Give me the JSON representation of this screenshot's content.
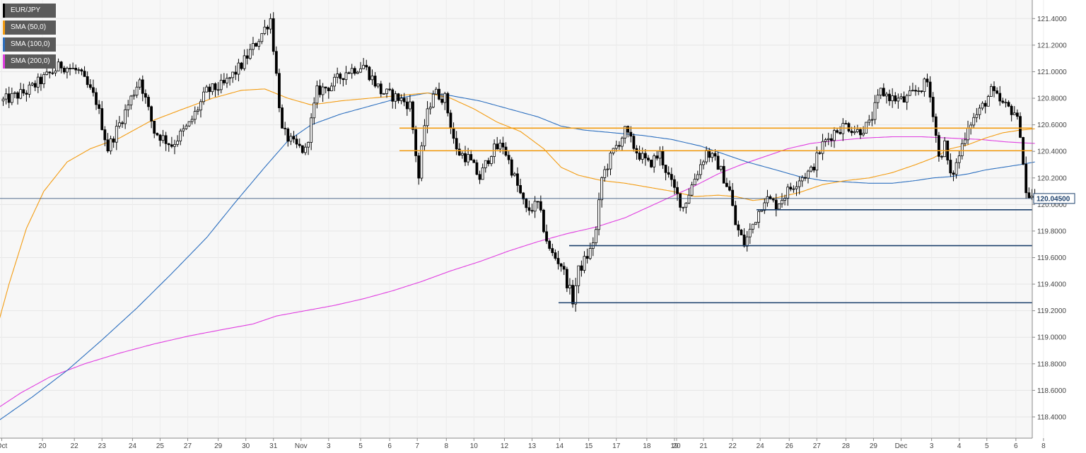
{
  "chart_data": {
    "type": "candlestick",
    "symbol": "EUR/JPY",
    "legend": [
      {
        "label": "EUR/JPY",
        "color": "#000000"
      },
      {
        "label": "SMA (50,0)",
        "color": "#f39c12"
      },
      {
        "label": "SMA (100,0)",
        "color": "#2c6fbf"
      },
      {
        "label": "SMA (200,0)",
        "color": "#e03ee0"
      }
    ],
    "y_ticks": [
      "121.4000",
      "121.2000",
      "121.0000",
      "120.8000",
      "120.6000",
      "120.4000",
      "120.2000",
      "120.0000",
      "119.8000",
      "119.6000",
      "119.4000",
      "119.2000",
      "119.0000",
      "118.8000",
      "118.6000",
      "118.4000"
    ],
    "ylim": [
      118.24,
      121.54
    ],
    "x_ticks": [
      {
        "label": "Oct",
        "i": -0.5
      },
      {
        "label": "20",
        "i": 13.5
      },
      {
        "label": "22",
        "i": 24.5
      },
      {
        "label": "23",
        "i": 34
      },
      {
        "label": "24",
        "i": 44.5
      },
      {
        "label": "25",
        "i": 54
      },
      {
        "label": "27",
        "i": 63.5
      },
      {
        "label": "29",
        "i": 74
      },
      {
        "label": "30",
        "i": 83.5
      },
      {
        "label": "31",
        "i": 93
      },
      {
        "label": "Nov",
        "i": 102.5
      },
      {
        "label": "3",
        "i": 112
      },
      {
        "label": "5",
        "i": 123
      },
      {
        "label": "6",
        "i": 133
      },
      {
        "label": "7",
        "i": 142.5
      },
      {
        "label": "8",
        "i": 152.5
      },
      {
        "label": "10",
        "i": 162
      },
      {
        "label": "12",
        "i": 172.5
      },
      {
        "label": "13",
        "i": 182
      },
      {
        "label": "14",
        "i": 191.5
      },
      {
        "label": "15",
        "i": 201.5
      },
      {
        "label": "17",
        "i": 211
      },
      {
        "label": "18",
        "i": 221.5
      },
      {
        "label": "19",
        "i": 231
      },
      {
        "label": "20",
        "i": 231.75
      },
      {
        "label": "21",
        "i": 241
      },
      {
        "label": "22",
        "i": 251
      },
      {
        "label": "24",
        "i": 260.5
      },
      {
        "label": "26",
        "i": 270.5
      },
      {
        "label": "27",
        "i": 280
      },
      {
        "label": "28",
        "i": 290
      },
      {
        "label": "29",
        "i": 299.5
      },
      {
        "label": "Dec",
        "i": 309
      },
      {
        "label": "3",
        "i": 319.5
      },
      {
        "label": "4",
        "i": 329
      },
      {
        "label": "5",
        "i": 338.5
      },
      {
        "label": "6",
        "i": 348.5
      },
      {
        "label": "8",
        "i": 358
      }
    ],
    "candle_count": 356,
    "close_path": [
      [
        0,
        120.78
      ],
      [
        8,
        120.85
      ],
      [
        14,
        120.95
      ],
      [
        20,
        121.05
      ],
      [
        26,
        121.0
      ],
      [
        32,
        120.78
      ],
      [
        36,
        120.42
      ],
      [
        42,
        120.7
      ],
      [
        47,
        120.95
      ],
      [
        52,
        120.55
      ],
      [
        58,
        120.45
      ],
      [
        64,
        120.6
      ],
      [
        70,
        120.85
      ],
      [
        76,
        120.9
      ],
      [
        82,
        121.05
      ],
      [
        88,
        121.25
      ],
      [
        92,
        121.4
      ],
      [
        96,
        120.55
      ],
      [
        100,
        120.45
      ],
      [
        104,
        120.4
      ],
      [
        108,
        120.85
      ],
      [
        113,
        120.9
      ],
      [
        118,
        121.0
      ],
      [
        124,
        121.05
      ],
      [
        130,
        120.85
      ],
      [
        136,
        120.8
      ],
      [
        140,
        120.75
      ],
      [
        143,
        120.2
      ],
      [
        145,
        120.6
      ],
      [
        148,
        120.85
      ],
      [
        152,
        120.8
      ],
      [
        156,
        120.4
      ],
      [
        160,
        120.35
      ],
      [
        164,
        120.2
      ],
      [
        168,
        120.4
      ],
      [
        172,
        120.45
      ],
      [
        176,
        120.2
      ],
      [
        180,
        119.95
      ],
      [
        184,
        120.0
      ],
      [
        188,
        119.65
      ],
      [
        192,
        119.55
      ],
      [
        196,
        119.28
      ],
      [
        198,
        119.5
      ],
      [
        202,
        119.65
      ],
      [
        204,
        119.8
      ],
      [
        206,
        120.2
      ],
      [
        210,
        120.4
      ],
      [
        214,
        120.55
      ],
      [
        218,
        120.4
      ],
      [
        222,
        120.3
      ],
      [
        226,
        120.38
      ],
      [
        230,
        120.15
      ],
      [
        234,
        119.98
      ],
      [
        238,
        120.2
      ],
      [
        242,
        120.4
      ],
      [
        246,
        120.3
      ],
      [
        250,
        120.1
      ],
      [
        252,
        119.85
      ],
      [
        255,
        119.7
      ],
      [
        258,
        119.85
      ],
      [
        262,
        120.05
      ],
      [
        266,
        120.0
      ],
      [
        270,
        120.1
      ],
      [
        274,
        120.2
      ],
      [
        278,
        120.25
      ],
      [
        282,
        120.45
      ],
      [
        286,
        120.55
      ],
      [
        290,
        120.6
      ],
      [
        294,
        120.55
      ],
      [
        298,
        120.6
      ],
      [
        302,
        120.85
      ],
      [
        306,
        120.8
      ],
      [
        310,
        120.78
      ],
      [
        314,
        120.85
      ],
      [
        318,
        120.92
      ],
      [
        320,
        120.7
      ],
      [
        322,
        120.35
      ],
      [
        324,
        120.45
      ],
      [
        326,
        120.2
      ],
      [
        328,
        120.3
      ],
      [
        330,
        120.45
      ],
      [
        332,
        120.6
      ],
      [
        336,
        120.7
      ],
      [
        340,
        120.85
      ],
      [
        344,
        120.75
      ],
      [
        348,
        120.7
      ],
      [
        350,
        120.55
      ],
      [
        352,
        120.08
      ],
      [
        355,
        120.05
      ]
    ],
    "sma50": [
      [
        -3,
        119.0
      ],
      [
        2,
        119.4
      ],
      [
        8,
        119.82
      ],
      [
        14,
        120.1
      ],
      [
        22,
        120.32
      ],
      [
        30,
        120.42
      ],
      [
        40,
        120.5
      ],
      [
        50,
        120.62
      ],
      [
        62,
        120.72
      ],
      [
        72,
        120.8
      ],
      [
        82,
        120.86
      ],
      [
        90,
        120.87
      ],
      [
        98,
        120.8
      ],
      [
        106,
        120.75
      ],
      [
        116,
        120.78
      ],
      [
        126,
        120.8
      ],
      [
        136,
        120.82
      ],
      [
        146,
        120.84
      ],
      [
        154,
        120.8
      ],
      [
        162,
        120.72
      ],
      [
        170,
        120.62
      ],
      [
        178,
        120.55
      ],
      [
        186,
        120.42
      ],
      [
        192,
        120.28
      ],
      [
        198,
        120.22
      ],
      [
        206,
        120.18
      ],
      [
        214,
        120.16
      ],
      [
        222,
        120.13
      ],
      [
        230,
        120.1
      ],
      [
        238,
        120.06
      ],
      [
        246,
        120.07
      ],
      [
        252,
        120.06
      ],
      [
        258,
        120.03
      ],
      [
        266,
        120.05
      ],
      [
        274,
        120.09
      ],
      [
        282,
        120.15
      ],
      [
        290,
        120.18
      ],
      [
        298,
        120.2
      ],
      [
        306,
        120.24
      ],
      [
        314,
        120.3
      ],
      [
        320,
        120.35
      ],
      [
        326,
        120.42
      ],
      [
        332,
        120.45
      ],
      [
        338,
        120.5
      ],
      [
        344,
        120.54
      ],
      [
        350,
        120.56
      ],
      [
        355,
        120.57
      ]
    ],
    "sma100": [
      [
        -3,
        118.35
      ],
      [
        10,
        118.55
      ],
      [
        22,
        118.75
      ],
      [
        34,
        118.98
      ],
      [
        46,
        119.22
      ],
      [
        58,
        119.48
      ],
      [
        70,
        119.75
      ],
      [
        80,
        120.02
      ],
      [
        90,
        120.28
      ],
      [
        98,
        120.48
      ],
      [
        106,
        120.6
      ],
      [
        116,
        120.68
      ],
      [
        126,
        120.74
      ],
      [
        136,
        120.8
      ],
      [
        146,
        120.84
      ],
      [
        154,
        120.82
      ],
      [
        164,
        120.78
      ],
      [
        174,
        120.72
      ],
      [
        184,
        120.66
      ],
      [
        192,
        120.59
      ],
      [
        200,
        120.56
      ],
      [
        210,
        120.54
      ],
      [
        220,
        120.52
      ],
      [
        230,
        120.49
      ],
      [
        240,
        120.44
      ],
      [
        248,
        120.38
      ],
      [
        256,
        120.32
      ],
      [
        266,
        120.26
      ],
      [
        274,
        120.21
      ],
      [
        282,
        120.18
      ],
      [
        290,
        120.17
      ],
      [
        298,
        120.16
      ],
      [
        306,
        120.16
      ],
      [
        314,
        120.18
      ],
      [
        320,
        120.2
      ],
      [
        326,
        120.21
      ],
      [
        332,
        120.23
      ],
      [
        338,
        120.26
      ],
      [
        344,
        120.28
      ],
      [
        350,
        120.3
      ],
      [
        355,
        120.32
      ]
    ],
    "sma200": [
      [
        -3,
        118.45
      ],
      [
        6,
        118.58
      ],
      [
        16,
        118.7
      ],
      [
        28,
        118.8
      ],
      [
        40,
        118.88
      ],
      [
        52,
        118.95
      ],
      [
        64,
        119.01
      ],
      [
        76,
        119.06
      ],
      [
        86,
        119.1
      ],
      [
        94,
        119.16
      ],
      [
        104,
        119.2
      ],
      [
        114,
        119.24
      ],
      [
        124,
        119.29
      ],
      [
        134,
        119.35
      ],
      [
        144,
        119.42
      ],
      [
        154,
        119.5
      ],
      [
        164,
        119.57
      ],
      [
        174,
        119.65
      ],
      [
        184,
        119.72
      ],
      [
        194,
        119.78
      ],
      [
        204,
        119.83
      ],
      [
        214,
        119.9
      ],
      [
        222,
        119.98
      ],
      [
        230,
        120.06
      ],
      [
        238,
        120.14
      ],
      [
        246,
        120.23
      ],
      [
        254,
        120.3
      ],
      [
        262,
        120.36
      ],
      [
        270,
        120.42
      ],
      [
        278,
        120.46
      ],
      [
        286,
        120.48
      ],
      [
        296,
        120.5
      ],
      [
        306,
        120.51
      ],
      [
        316,
        120.51
      ],
      [
        326,
        120.5
      ],
      [
        336,
        120.49
      ],
      [
        346,
        120.47
      ],
      [
        355,
        120.46
      ]
    ],
    "resistance_levels": [
      120.575,
      120.405
    ],
    "support_levels": [
      119.96,
      119.69,
      119.26
    ],
    "current_price": "120.04500",
    "current_price_value": 120.045
  }
}
